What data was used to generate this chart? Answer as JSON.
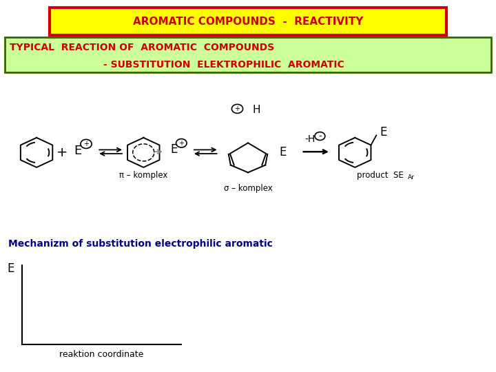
{
  "title": "AROMATIC COMPOUNDS  -  REACTIVITY",
  "title_bg": "#FFFF00",
  "title_border": "#CC0000",
  "title_text_color": "#CC0000",
  "subtitle_line1": "TYPICAL  REACTION OF  AROMATIC  COMPOUNDS",
  "subtitle_line2": "- SUBSTITUTION  ELEKTROPHILIC  AROMATIC",
  "subtitle_bg": "#CCFF99",
  "subtitle_border": "#336600",
  "subtitle_text_color": "#CC0000",
  "mechanism_text": "Mechanizm of substitution electrophilic aromatic",
  "mechanism_color": "#000080",
  "pi_komplex": "π – komplex",
  "sigma_komplex": "σ – komplex",
  "product_label": "product  SE",
  "product_sub": "Ar",
  "ylabel": "E",
  "xlabel": "reaktion coordinate",
  "bg_color": "#FFFFFF"
}
